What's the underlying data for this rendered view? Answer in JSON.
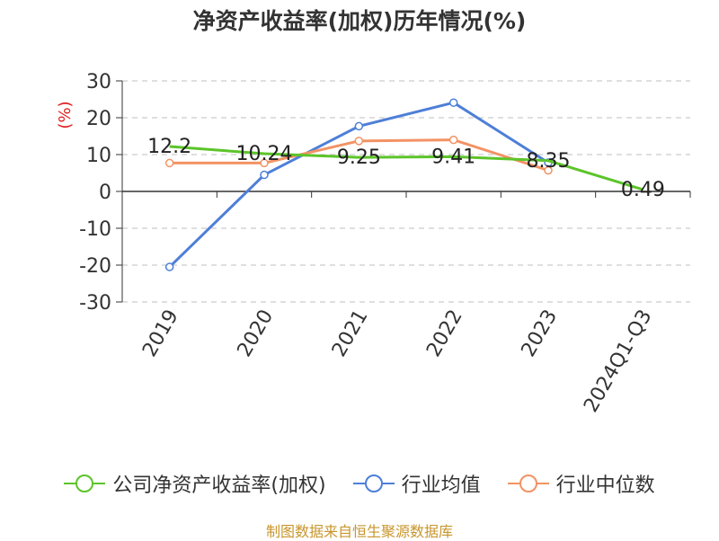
{
  "chart_data": {
    "type": "line",
    "title": "净资产收益率(加权)历年情况(%)",
    "ylabel": "(%)",
    "categories": [
      "2019",
      "2020",
      "2021",
      "2022",
      "2023",
      "2024Q1-Q3"
    ],
    "ylim": [
      -30,
      30
    ],
    "yticks": [
      30,
      20,
      10,
      0,
      -10,
      -20,
      -30
    ],
    "grid": true,
    "legend_position": "bottom",
    "series": [
      {
        "name": "公司净资产收益率(加权)",
        "color": "#5cc42a",
        "values": [
          12.2,
          10.24,
          9.25,
          9.41,
          8.35,
          0.49
        ],
        "labels": [
          "12.2",
          "10.24",
          "9.25",
          "9.41",
          "8.35",
          "0.49"
        ]
      },
      {
        "name": "行业均值",
        "color": "#4e7fd8",
        "values": [
          -20.5,
          4.5,
          17.7,
          24.1,
          7.8,
          null
        ]
      },
      {
        "name": "行业中位数",
        "color": "#f39264",
        "values": [
          7.7,
          7.7,
          13.7,
          14.0,
          5.7,
          null
        ]
      }
    ]
  },
  "source": "制图数据来自恒生聚源数据库"
}
